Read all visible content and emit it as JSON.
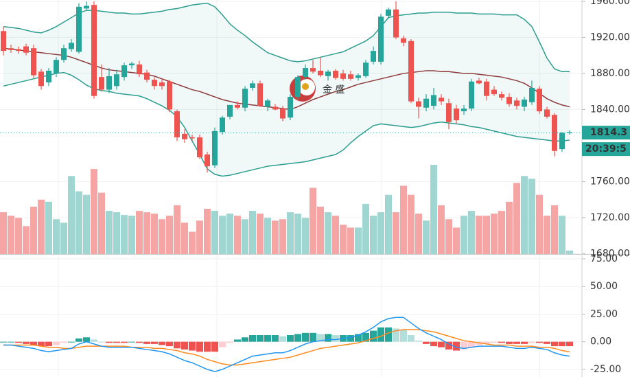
{
  "chart_data": [
    {
      "type": "candlestick",
      "ylim": [
        1679.5,
        1961.5
      ],
      "yticks": [
        {
          "value": 1680,
          "label": "1680.00"
        },
        {
          "value": 1720,
          "label": "1720.00"
        },
        {
          "value": 1760,
          "label": "1760.00"
        },
        {
          "value": 1840,
          "label": "1840.00"
        },
        {
          "value": 1880,
          "label": "1880.00"
        },
        {
          "value": 1920,
          "label": "1920.00"
        },
        {
          "value": 1960,
          "label": "1960.00"
        }
      ],
      "grid": true,
      "open": [
        1927,
        1908,
        1907,
        1910,
        1908,
        1882,
        1870,
        1880,
        1895,
        1907,
        1904,
        1952,
        1956,
        1876,
        1862,
        1866,
        1876,
        1889,
        1890,
        1881,
        1873,
        1870,
        1871,
        1838,
        1813,
        1809,
        1809,
        1790,
        1778,
        1815,
        1832,
        1845,
        1842,
        1864,
        1869,
        1843,
        1843,
        1841,
        1831,
        1854,
        1876,
        1886,
        1883,
        1877,
        1883,
        1880,
        1879,
        1875,
        1877,
        1893,
        1893,
        1944,
        1951,
        1919,
        1916,
        1849,
        1842,
        1844,
        1853,
        1847,
        1841,
        1838,
        1841,
        1872,
        1871,
        1862,
        1857,
        1854,
        1850,
        1843,
        1848,
        1863,
        1840,
        1834,
        1796,
        1814
      ],
      "high": [
        1932,
        1912,
        1910,
        1913,
        1912,
        1885,
        1886,
        1898,
        1912,
        1918,
        1958,
        1960,
        1960,
        1890,
        1886,
        1884,
        1892,
        1893,
        1894,
        1884,
        1876,
        1874,
        1873,
        1840,
        1818,
        1812,
        1812,
        1793,
        1820,
        1833,
        1845,
        1849,
        1866,
        1872,
        1872,
        1852,
        1846,
        1844,
        1857,
        1878,
        1890,
        1895,
        1898,
        1884,
        1885,
        1884,
        1883,
        1880,
        1895,
        1910,
        1946,
        1953,
        1960,
        1922,
        1918,
        1853,
        1857,
        1864,
        1857,
        1852,
        1845,
        1845,
        1874,
        1875,
        1874,
        1866,
        1860,
        1858,
        1853,
        1854,
        1872,
        1866,
        1843,
        1836,
        1815,
        1817
      ],
      "low": [
        1900,
        1903,
        1902,
        1900,
        1875,
        1862,
        1866,
        1876,
        1892,
        1904,
        1902,
        1950,
        1852,
        1860,
        1858,
        1862,
        1872,
        1885,
        1876,
        1870,
        1862,
        1862,
        1837,
        1805,
        1803,
        1805,
        1785,
        1770,
        1775,
        1812,
        1829,
        1840,
        1838,
        1861,
        1843,
        1838,
        1839,
        1827,
        1828,
        1851,
        1873,
        1880,
        1876,
        1872,
        1873,
        1872,
        1872,
        1872,
        1875,
        1890,
        1890,
        1941,
        1918,
        1910,
        1847,
        1830,
        1838,
        1840,
        1845,
        1818,
        1824,
        1834,
        1838,
        1868,
        1850,
        1855,
        1850,
        1843,
        1840,
        1838,
        1845,
        1835,
        1830,
        1788,
        1793,
        1812
      ],
      "close": [
        1905,
        1906,
        1905,
        1903,
        1878,
        1866,
        1883,
        1895,
        1908,
        1914,
        1954,
        1955,
        1855,
        1862,
        1877,
        1879,
        1889,
        1891,
        1879,
        1873,
        1866,
        1866,
        1840,
        1809,
        1807,
        1808,
        1787,
        1777,
        1816,
        1831,
        1845,
        1842,
        1863,
        1869,
        1844,
        1850,
        1840,
        1830,
        1854,
        1876,
        1886,
        1882,
        1878,
        1882,
        1875,
        1874,
        1874,
        1878,
        1892,
        1905,
        1943,
        1951,
        1920,
        1914,
        1849,
        1843,
        1852,
        1856,
        1849,
        1826,
        1828,
        1841,
        1871,
        1869,
        1855,
        1857,
        1853,
        1846,
        1844,
        1851,
        1864,
        1838,
        1832,
        1794,
        1814,
        1815
      ],
      "volume": [
        60,
        55,
        52,
        40,
        68,
        78,
        75,
        50,
        45,
        112,
        90,
        85,
        122,
        88,
        62,
        60,
        56,
        55,
        62,
        60,
        58,
        50,
        55,
        70,
        45,
        32,
        48,
        65,
        62,
        55,
        58,
        55,
        50,
        62,
        58,
        52,
        48,
        50,
        60,
        58,
        52,
        95,
        68,
        60,
        55,
        42,
        38,
        38,
        72,
        55,
        60,
        85,
        60,
        98,
        85,
        58,
        48,
        128,
        70,
        50,
        38,
        55,
        62,
        55,
        55,
        58,
        62,
        75,
        102,
        112,
        108,
        85,
        55,
        70,
        55,
        5
      ],
      "bollinger": {
        "upper": [
          1932,
          1931,
          1930,
          1928,
          1926,
          1925,
          1928,
          1932,
          1937,
          1942,
          1947,
          1950,
          1950,
          1949,
          1948,
          1947,
          1947,
          1946,
          1946,
          1947,
          1948,
          1949,
          1951,
          1952,
          1954,
          1956,
          1957,
          1958,
          1954,
          1945,
          1935,
          1928,
          1922,
          1915,
          1909,
          1903,
          1900,
          1897,
          1894,
          1893,
          1894,
          1896,
          1898,
          1900,
          1902,
          1904,
          1908,
          1912,
          1916,
          1922,
          1932,
          1942,
          1944,
          1945,
          1946,
          1947,
          1947,
          1948,
          1948,
          1948,
          1947,
          1947,
          1947,
          1946,
          1946,
          1946,
          1945,
          1945,
          1945,
          1940,
          1932,
          1915,
          1897,
          1885,
          1882,
          1882
        ],
        "middle": [
          1908,
          1907,
          1906,
          1905,
          1904,
          1903,
          1902,
          1901,
          1900,
          1898,
          1895,
          1892,
          1889,
          1886,
          1884,
          1883,
          1882,
          1881,
          1880,
          1879,
          1877,
          1874,
          1871,
          1868,
          1865,
          1862,
          1860,
          1857,
          1854,
          1851,
          1849,
          1847,
          1846,
          1845,
          1844,
          1843,
          1842,
          1841,
          1840,
          1843,
          1847,
          1851,
          1854,
          1857,
          1860,
          1862,
          1865,
          1868,
          1870,
          1872,
          1874,
          1876,
          1878,
          1880,
          1881,
          1882,
          1883,
          1883,
          1882,
          1882,
          1881,
          1880,
          1880,
          1879,
          1878,
          1877,
          1876,
          1874,
          1872,
          1869,
          1864,
          1858,
          1852,
          1848,
          1845,
          1843
        ],
        "lower": [
          1866,
          1868,
          1870,
          1872,
          1874,
          1876,
          1878,
          1880,
          1881,
          1878,
          1873,
          1867,
          1863,
          1861,
          1860,
          1858,
          1857,
          1856,
          1855,
          1852,
          1848,
          1844,
          1839,
          1832,
          1820,
          1805,
          1790,
          1774,
          1768,
          1766,
          1767,
          1769,
          1771,
          1773,
          1775,
          1777,
          1778,
          1779,
          1780,
          1781,
          1782,
          1784,
          1786,
          1788,
          1790,
          1795,
          1803,
          1810,
          1816,
          1822,
          1824,
          1823,
          1822,
          1821,
          1820,
          1821,
          1823,
          1825,
          1826,
          1825,
          1824,
          1823,
          1821,
          1820,
          1818,
          1816,
          1814,
          1812,
          1810,
          1809,
          1808,
          1807,
          1806,
          1805,
          1805,
          1806
        ]
      },
      "colors": {
        "up": "#26a69a",
        "down": "#ef5350",
        "volume_up": "#9fd6d1",
        "volume_down": "#f5a5a3",
        "band": "#2a9d8f",
        "band_middle": "#8e3b3b",
        "band_fill": "rgba(38,166,154,0.07)",
        "label_box": "#26a69a"
      },
      "last_price": {
        "value": 1814.3,
        "label": "1814.3"
      },
      "time_label": "20:39:5",
      "watermark": "金 盛"
    },
    {
      "type": "macd",
      "ylim": [
        -31.9,
        78.1
      ],
      "yticks": [
        {
          "value": -25,
          "label": "-25.00"
        },
        {
          "value": 0,
          "label": "0.00"
        },
        {
          "value": 25,
          "label": "25.00"
        },
        {
          "value": 50,
          "label": "50.00"
        },
        {
          "value": 75,
          "label": "75.00"
        }
      ],
      "grid": true,
      "histogram": [
        0,
        0,
        -1,
        -2,
        -3,
        -4,
        -4,
        -3,
        -1,
        0,
        3,
        4,
        2,
        0,
        -1,
        -1,
        -1,
        0,
        -1,
        -2,
        -2,
        -3,
        -4,
        -6,
        -7,
        -8,
        -9,
        -9,
        -9,
        -5,
        -1,
        2,
        4,
        6,
        6,
        6,
        6,
        5,
        6,
        7,
        8,
        8,
        7,
        7,
        6,
        6,
        6,
        7,
        8,
        10,
        13,
        13,
        12,
        11,
        6,
        1,
        -2,
        -4,
        -5,
        -7,
        -8,
        -7,
        -5,
        -3,
        -2,
        -1,
        -1,
        -2,
        -2,
        -2,
        -1,
        -1,
        -2,
        -4,
        -4,
        -4
      ],
      "dif": [
        -3,
        -3,
        -4,
        -5,
        -6,
        -8,
        -9,
        -8,
        -7,
        -6,
        -2,
        0,
        -2,
        -4,
        -5,
        -5,
        -5,
        -5,
        -6,
        -7,
        -8,
        -9,
        -11,
        -14,
        -17,
        -19,
        -22,
        -25,
        -27,
        -25,
        -22,
        -19,
        -16,
        -13,
        -12,
        -11,
        -10,
        -10,
        -8,
        -5,
        -2,
        0,
        1,
        2,
        2,
        3,
        4,
        6,
        9,
        13,
        18,
        21,
        22,
        22,
        17,
        12,
        8,
        5,
        2,
        -2,
        -5,
        -6,
        -5,
        -4,
        -4,
        -4,
        -4,
        -5,
        -6,
        -6,
        -5,
        -6,
        -7,
        -10,
        -12,
        -13
      ],
      "dea": [
        -3,
        -3,
        -3,
        -3,
        -3,
        -4,
        -5,
        -5,
        -6,
        -6,
        -5,
        -4,
        -4,
        -4,
        -4,
        -4,
        -4,
        -5,
        -5,
        -5,
        -6,
        -6,
        -7,
        -8,
        -10,
        -11,
        -13,
        -16,
        -18,
        -20,
        -21,
        -21,
        -20,
        -19,
        -18,
        -17,
        -16,
        -15,
        -14,
        -12,
        -10,
        -8,
        -6,
        -5,
        -4,
        -3,
        -2,
        -1,
        1,
        3,
        5,
        8,
        10,
        11,
        11,
        11,
        10,
        9,
        7,
        5,
        3,
        1,
        0,
        -1,
        -2,
        -3,
        -3,
        -3,
        -4,
        -4,
        -4,
        -5,
        -5,
        -6,
        -8,
        -9
      ],
      "colors": {
        "dif": "#2196f3",
        "dea": "#ff8a1e",
        "pos_up": "#26a69a",
        "pos_down": "#b2dfdb",
        "neg_down": "#ef5350",
        "neg_up": "#ffcdd2"
      }
    }
  ]
}
